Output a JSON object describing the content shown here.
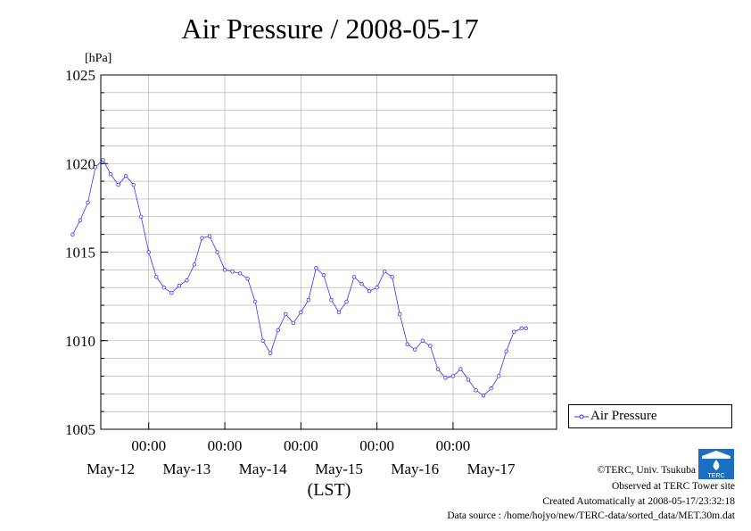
{
  "chart_data": {
    "type": "line",
    "title": "Air Pressure / 2008-05-17",
    "ylabel": "[hPa]",
    "xlabel": "(LST)",
    "ylim": [
      1005,
      1025
    ],
    "yticks": [
      "1005",
      "1010",
      "1015",
      "1020",
      "1025"
    ],
    "x_time_labels": [
      "00:00",
      "00:00",
      "00:00",
      "00:00",
      "00:00"
    ],
    "x_date_labels": [
      "May-12",
      "May-13",
      "May-14",
      "May-15",
      "May-16",
      "May-17"
    ],
    "grid": true,
    "legend_position": "right",
    "series": [
      {
        "name": "Air Pressure",
        "color": "#3333ff",
        "x_days": [
          0.0,
          0.1,
          0.2,
          0.3,
          0.4,
          0.5,
          0.6,
          0.7,
          0.8,
          0.9,
          1.0,
          1.1,
          1.2,
          1.3,
          1.4,
          1.5,
          1.6,
          1.7,
          1.8,
          1.9,
          2.0,
          2.1,
          2.2,
          2.3,
          2.4,
          2.5,
          2.6,
          2.7,
          2.8,
          2.9,
          3.0,
          3.1,
          3.2,
          3.3,
          3.4,
          3.5,
          3.6,
          3.7,
          3.8,
          3.9,
          4.0,
          4.1,
          4.2,
          4.3,
          4.4,
          4.5,
          4.6,
          4.7,
          4.8,
          4.9,
          5.0,
          5.1,
          5.2,
          5.3,
          5.4,
          5.5,
          5.6,
          5.7,
          5.8,
          5.9,
          5.96
        ],
        "values": [
          1016.0,
          1016.8,
          1017.8,
          1019.8,
          1020.2,
          1019.4,
          1018.8,
          1019.3,
          1018.8,
          1017.0,
          1015.0,
          1013.6,
          1013.0,
          1012.7,
          1013.1,
          1013.4,
          1014.3,
          1015.8,
          1015.9,
          1015.0,
          1014.0,
          1013.9,
          1013.8,
          1013.5,
          1012.2,
          1010.0,
          1009.3,
          1010.6,
          1011.5,
          1011.0,
          1011.6,
          1012.3,
          1014.1,
          1013.7,
          1012.3,
          1011.6,
          1012.2,
          1013.6,
          1013.2,
          1012.8,
          1013.0,
          1013.9,
          1013.6,
          1011.5,
          1009.8,
          1009.5,
          1010.0,
          1009.7,
          1008.4,
          1007.9,
          1008.0,
          1008.4,
          1007.8,
          1007.2,
          1006.9,
          1007.3,
          1008.0,
          1009.4,
          1010.5,
          1010.7,
          1010.7
        ]
      }
    ]
  },
  "legend": {
    "label": "Air Pressure"
  },
  "credits": {
    "copyright": "©TERC, Univ. Tsukuba",
    "observed": "Observed at TERC Tower site",
    "created": "Created Automatically at 2008-05-17/23:32:18",
    "source": "Data source : /home/hojyo/new/TERC-data/sorted_data/MET.30m.dat",
    "logo_text": "TERC"
  }
}
